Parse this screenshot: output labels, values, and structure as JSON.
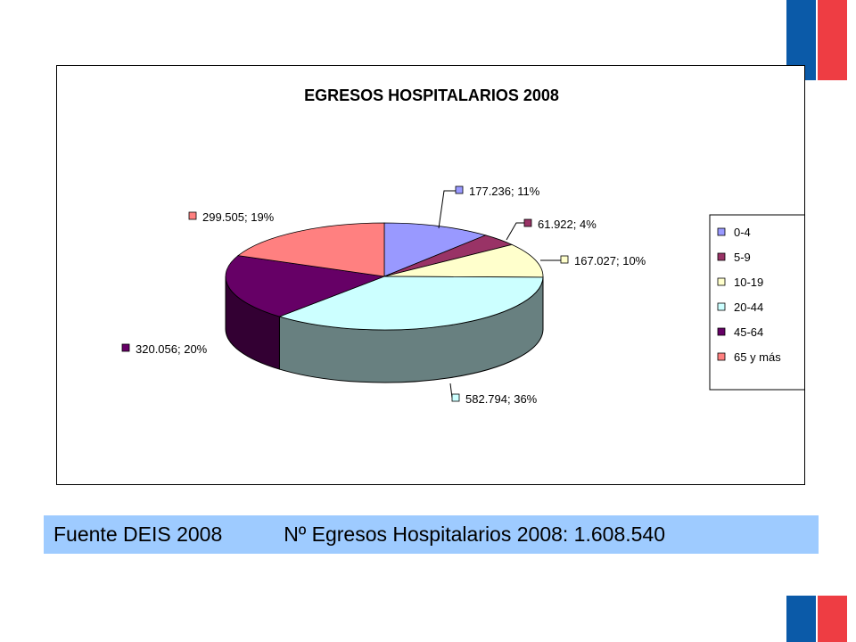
{
  "chart_data": {
    "type": "pie",
    "title": "EGRESOS HOSPITALARIOS 2008",
    "slices": [
      {
        "category": "0-4",
        "value": 177236,
        "label": "177.236; 11%",
        "color": "#9999ff"
      },
      {
        "category": "5-9",
        "value": 61922,
        "label": "61.922; 4%",
        "color": "#993366"
      },
      {
        "category": "10-19",
        "value": 167027,
        "label": "167.027; 10%",
        "color": "#ffffcc"
      },
      {
        "category": "20-44",
        "value": 582794,
        "label": "582.794; 36%",
        "color": "#ccffff"
      },
      {
        "category": "45-64",
        "value": 320056,
        "label": "320.056; 20%",
        "color": "#660066"
      },
      {
        "category": "65 y más",
        "value": 299505,
        "label": "299.505; 19%",
        "color": "#ff8080"
      }
    ],
    "legend_placement": "right",
    "three_d": true
  },
  "footer": {
    "source": "Fuente DEIS 2008",
    "total": "Nº Egresos Hospitalarios 2008: 1.608.540",
    "background": "#9ecbff"
  },
  "colors": {
    "flag_blue": "#0b5aa8",
    "flag_red": "#ee3d43"
  }
}
